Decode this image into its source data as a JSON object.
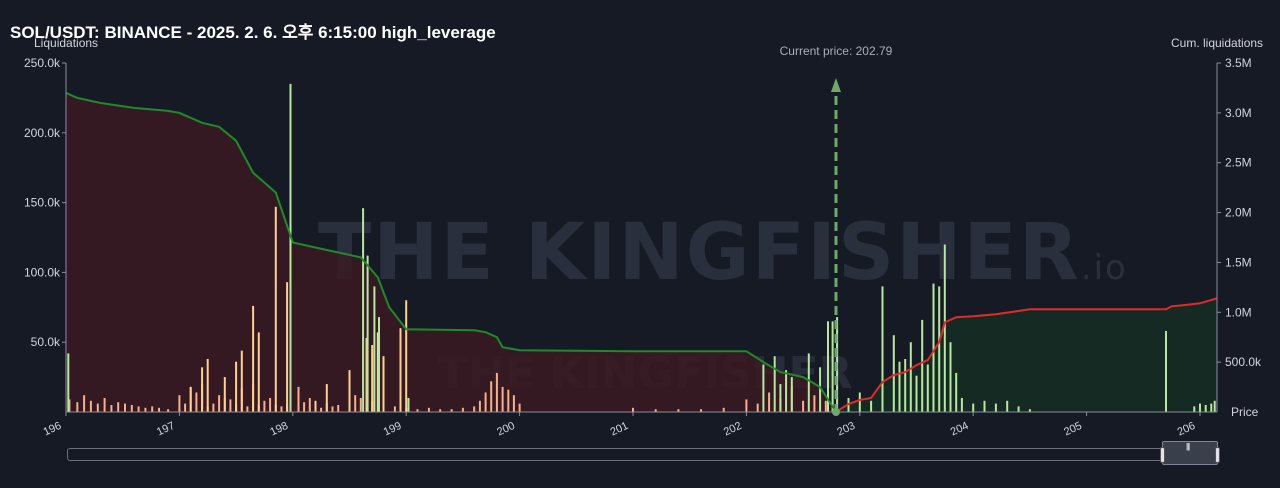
{
  "title": "SOL/USDT: BINANCE - 2025. 2. 6. 오후 6:15:00 high_leverage",
  "watermark": {
    "main": "THE KINGFISHER",
    "suffix": ".io",
    "secondary": "THE KINGFISHER"
  },
  "colors": {
    "background": "#161a25",
    "short_liq_bar": "#f5b08a",
    "long_liq_bar": "#b6e8a0",
    "cum_below": "#1e8a2a",
    "cum_above": "#e02b2b",
    "fill_below": "#3a1a22",
    "fill_above": "#152c22",
    "current_price": "#6fa86a"
  },
  "chart_data": {
    "type": "bar",
    "title": "SOL/USDT: BINANCE - 2025. 2. 6. 오후 6:15:00 high_leverage",
    "ylabel": "Liquidations",
    "y2label": "Cum. liquidations",
    "xlabel": "Price",
    "xlim": [
      196,
      206.15
    ],
    "ylim": [
      0,
      250000
    ],
    "y2lim": [
      0,
      3500000
    ],
    "x_ticks": [
      "196",
      "197",
      "198",
      "199",
      "200",
      "201",
      "202",
      "203",
      "204",
      "205",
      "206"
    ],
    "y_ticks": [
      "50.0k",
      "100.0k",
      "150.0k",
      "200.0k",
      "250.0k"
    ],
    "y2_ticks": [
      "500.0k",
      "1.0M",
      "1.5M",
      "2.0M",
      "2.5M",
      "3.0M",
      "3.5M"
    ],
    "current_price_label": "Current price: 202.79",
    "current_price": 202.79,
    "grid": false,
    "series": [
      {
        "kind": "bars",
        "color": "#f5b08a",
        "x": [
          196.03,
          196.1,
          196.16,
          196.22,
          196.28,
          196.34,
          196.4,
          196.46,
          196.52,
          196.58,
          196.64,
          196.7,
          196.76,
          196.82,
          196.9,
          197.0,
          197.05,
          197.1,
          197.15,
          197.2,
          197.25,
          197.3,
          197.35,
          197.4,
          197.45,
          197.5,
          197.55,
          197.6,
          197.65,
          197.7,
          197.75,
          197.8,
          197.85,
          197.9,
          197.95,
          198.05,
          198.1,
          198.15,
          198.2,
          198.25,
          198.3,
          198.35,
          198.4,
          198.5,
          198.55,
          198.6,
          198.65,
          198.7,
          198.8,
          198.9,
          199.0,
          199.1,
          199.2,
          199.3,
          199.4,
          199.5,
          199.6,
          199.65,
          199.7,
          199.75,
          199.8,
          199.85,
          199.9,
          199.95,
          200.0,
          201.0,
          201.2,
          201.4,
          201.6,
          201.8,
          202.0,
          202.1,
          202.2,
          202.3,
          202.4,
          202.5,
          202.6,
          202.7
        ],
        "values": [
          9000,
          7000,
          12000,
          8000,
          6000,
          10000,
          5000,
          7000,
          6000,
          5000,
          4000,
          3000,
          4000,
          3000,
          2000,
          12000,
          6000,
          18000,
          14000,
          20000,
          4000,
          6000,
          12000,
          10000,
          9000,
          6000,
          17000,
          4000,
          20000,
          5000,
          8000,
          10000,
          5000,
          4000,
          6000,
          18000,
          7000,
          10000,
          5000,
          3000,
          6000,
          4000,
          5000,
          8000,
          12000,
          10000,
          16000,
          8000,
          6000,
          4000,
          3000,
          2000,
          3000,
          2000,
          2000,
          3000,
          4000,
          8000,
          14000,
          22000,
          28000,
          18000,
          16000,
          12000,
          6000,
          3000,
          2000,
          2000,
          2000,
          3000,
          9000,
          6000,
          14000,
          10000,
          18000,
          8000,
          12000,
          8000
        ]
      },
      {
        "kind": "bars",
        "color": "#ffd090",
        "x": [
          197.1,
          197.2,
          197.25,
          197.4,
          197.5,
          197.55,
          197.65,
          197.7,
          197.85,
          197.95,
          198.2,
          198.3,
          198.5,
          198.65,
          198.7,
          198.75,
          198.8,
          198.95,
          199.0
        ],
        "values": [
          18000,
          32000,
          38000,
          25000,
          36000,
          44000,
          76000,
          57000,
          147000,
          93000,
          8000,
          20000,
          30000,
          53000,
          48000,
          57000,
          40000,
          60000,
          80000
        ]
      },
      {
        "kind": "bars",
        "color": "#b6e8a0",
        "x": [
          196.02,
          197.98,
          198.62,
          198.66,
          198.72,
          198.76,
          199.02,
          202.15,
          202.25,
          202.3,
          202.35,
          202.4,
          202.55,
          202.65,
          202.72,
          202.76,
          202.8,
          202.9,
          203.0,
          203.1,
          203.2,
          203.3,
          203.35,
          203.4,
          203.45,
          203.5,
          203.55,
          203.6,
          203.65,
          203.7,
          203.75,
          203.8,
          203.85,
          203.9,
          204.0,
          204.1,
          204.2,
          204.3,
          204.4,
          204.5,
          205.7,
          205.95,
          206.0,
          206.05,
          206.1,
          206.13
        ],
        "values": [
          42000,
          235000,
          146000,
          112000,
          90000,
          68000,
          10000,
          34000,
          40000,
          20000,
          30000,
          25000,
          42000,
          32000,
          65000,
          65000,
          68000,
          10000,
          14000,
          8000,
          90000,
          55000,
          36000,
          38000,
          50000,
          26000,
          66000,
          34000,
          92000,
          90000,
          120000,
          50000,
          28000,
          10000,
          6000,
          8000,
          6000,
          8000,
          4000,
          2000,
          58000,
          4000,
          6000,
          5000,
          6000,
          8000
        ]
      },
      {
        "kind": "line",
        "name": "cum_below",
        "color": "#1e8a2a",
        "x": [
          196.0,
          196.1,
          196.3,
          196.6,
          196.9,
          197.0,
          197.2,
          197.35,
          197.5,
          197.65,
          197.85,
          198.0,
          198.2,
          198.4,
          198.6,
          198.75,
          198.85,
          199.0,
          199.3,
          199.6,
          199.7,
          199.8,
          199.85,
          200.0,
          201.0,
          201.5,
          202.0,
          202.15,
          202.3,
          202.5,
          202.65,
          202.79
        ],
        "values": [
          3200000,
          3150000,
          3100000,
          3050000,
          3020000,
          3000000,
          2900000,
          2860000,
          2720000,
          2400000,
          2200000,
          1700000,
          1650000,
          1600000,
          1550000,
          1350000,
          1050000,
          830000,
          825000,
          820000,
          800000,
          750000,
          650000,
          620000,
          610000,
          610000,
          610000,
          500000,
          400000,
          350000,
          250000,
          0
        ]
      },
      {
        "kind": "line",
        "name": "cum_above",
        "color": "#e02b2b",
        "x": [
          202.79,
          202.9,
          203.0,
          203.1,
          203.2,
          203.3,
          203.4,
          203.5,
          203.6,
          203.7,
          203.75,
          203.85,
          204.0,
          204.2,
          204.5,
          205.0,
          205.5,
          205.7,
          205.75,
          205.85,
          206.0,
          206.15
        ],
        "values": [
          0,
          80000,
          120000,
          140000,
          300000,
          370000,
          400000,
          470000,
          520000,
          700000,
          900000,
          950000,
          960000,
          980000,
          1030000,
          1030000,
          1030000,
          1030000,
          1060000,
          1070000,
          1090000,
          1140000
        ]
      }
    ]
  }
}
